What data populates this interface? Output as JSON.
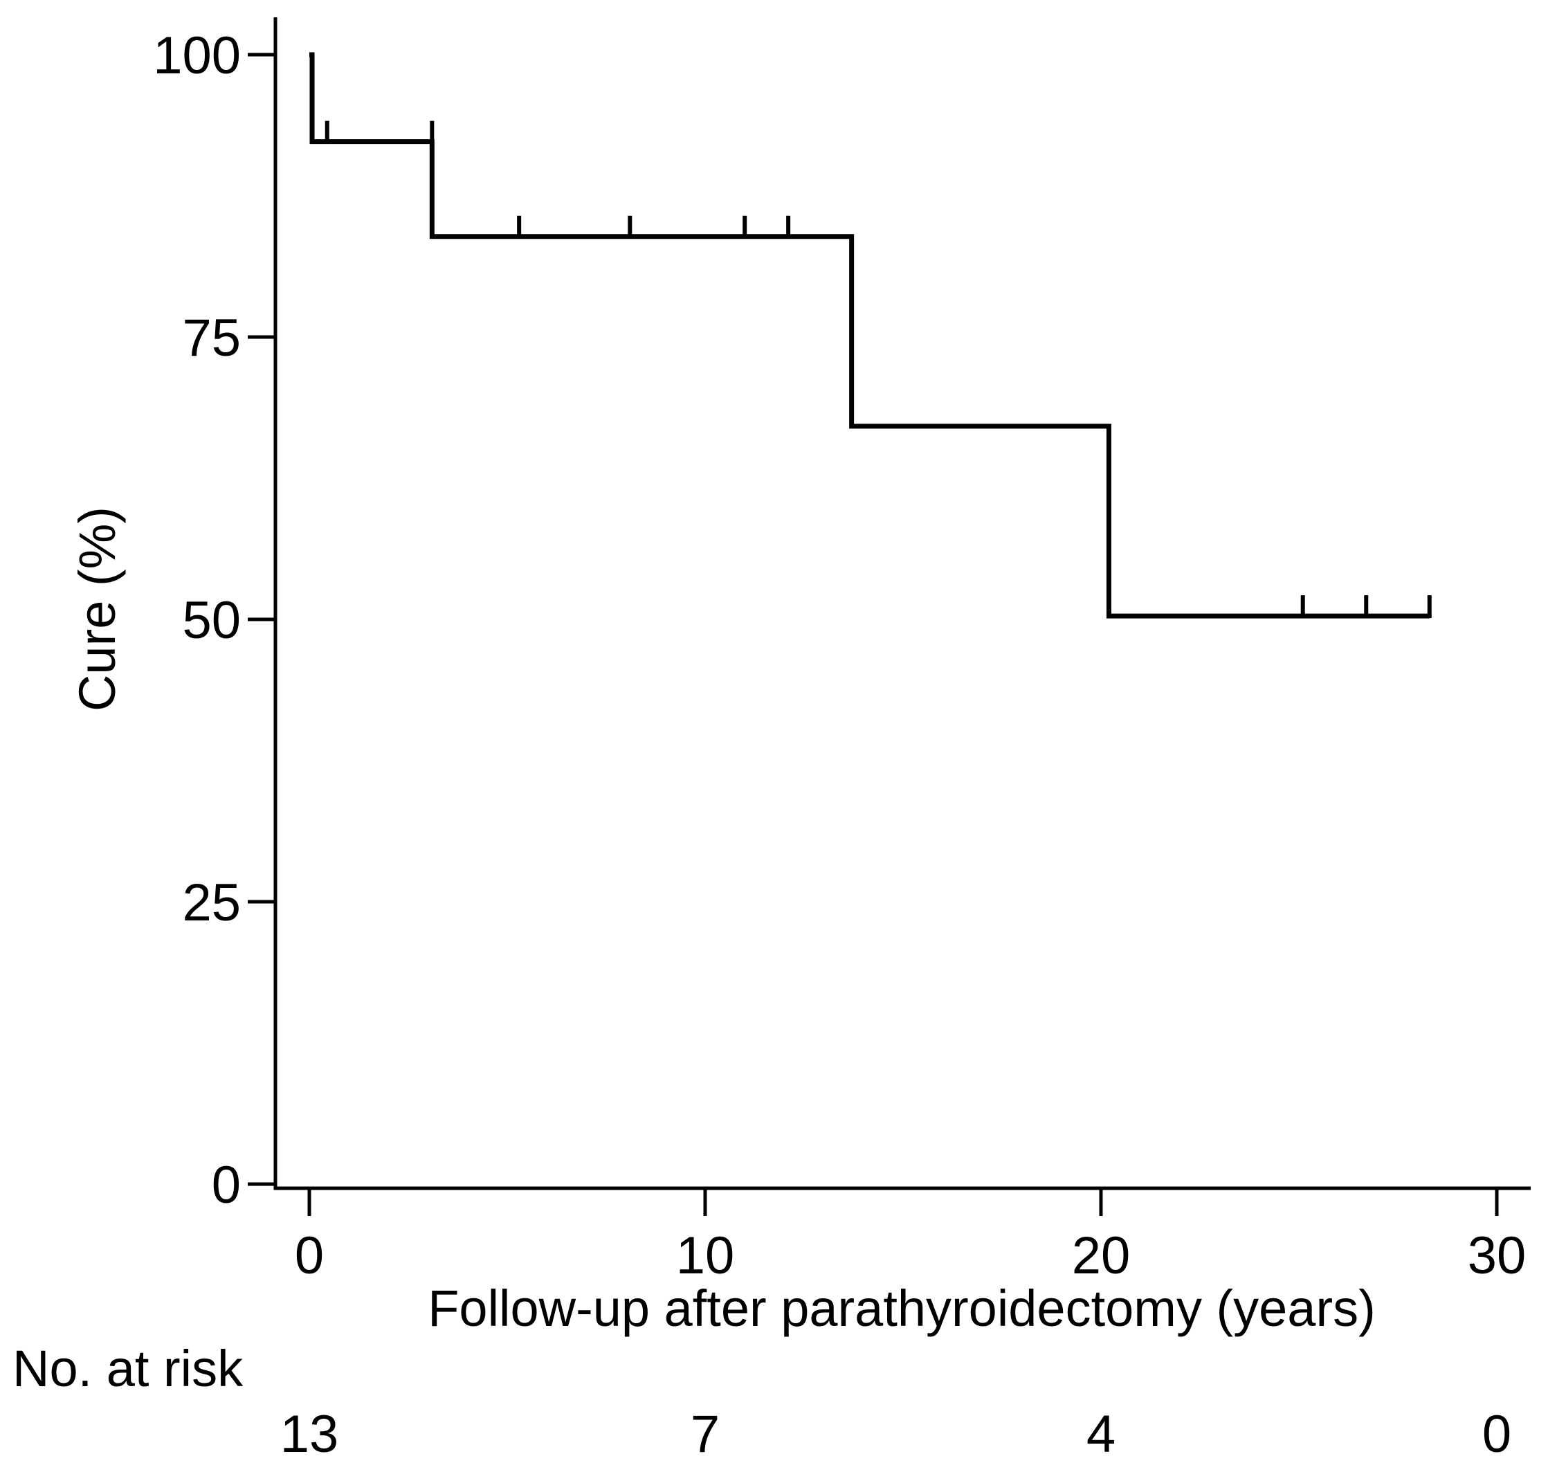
{
  "chart_data": {
    "type": "line",
    "subtype": "kaplan-meier-step",
    "title": "",
    "xlabel": "Follow-up after parathyroidectomy (years)",
    "ylabel": "Cure (%)",
    "x_ticks": [
      0,
      10,
      20,
      30
    ],
    "y_ticks": [
      0,
      25,
      50,
      75,
      100
    ],
    "xlim": [
      0,
      30
    ],
    "ylim": [
      0,
      100
    ],
    "grid": false,
    "legend": "none",
    "line_color": "#000000",
    "background_color": "#ffffff",
    "series": [
      {
        "name": "Cure",
        "step_times_years": [
          0,
          0.07,
          3.1,
          13.7,
          20.2
        ],
        "step_percents": [
          100,
          92.3,
          83.9,
          67.1,
          50.3
        ],
        "end_time_years": 28.3,
        "censor_times_years": [
          0.45,
          3.1,
          5.3,
          8.1,
          11.0,
          12.1,
          25.1,
          26.7,
          28.3
        ],
        "censor_percents": [
          92.3,
          92.3,
          83.9,
          83.9,
          83.9,
          83.9,
          50.3,
          50.3,
          50.3
        ]
      }
    ],
    "risk_table": {
      "label": "No. at risk",
      "times": [
        0,
        10,
        20,
        30
      ],
      "counts": [
        13,
        7,
        4,
        0
      ]
    }
  }
}
